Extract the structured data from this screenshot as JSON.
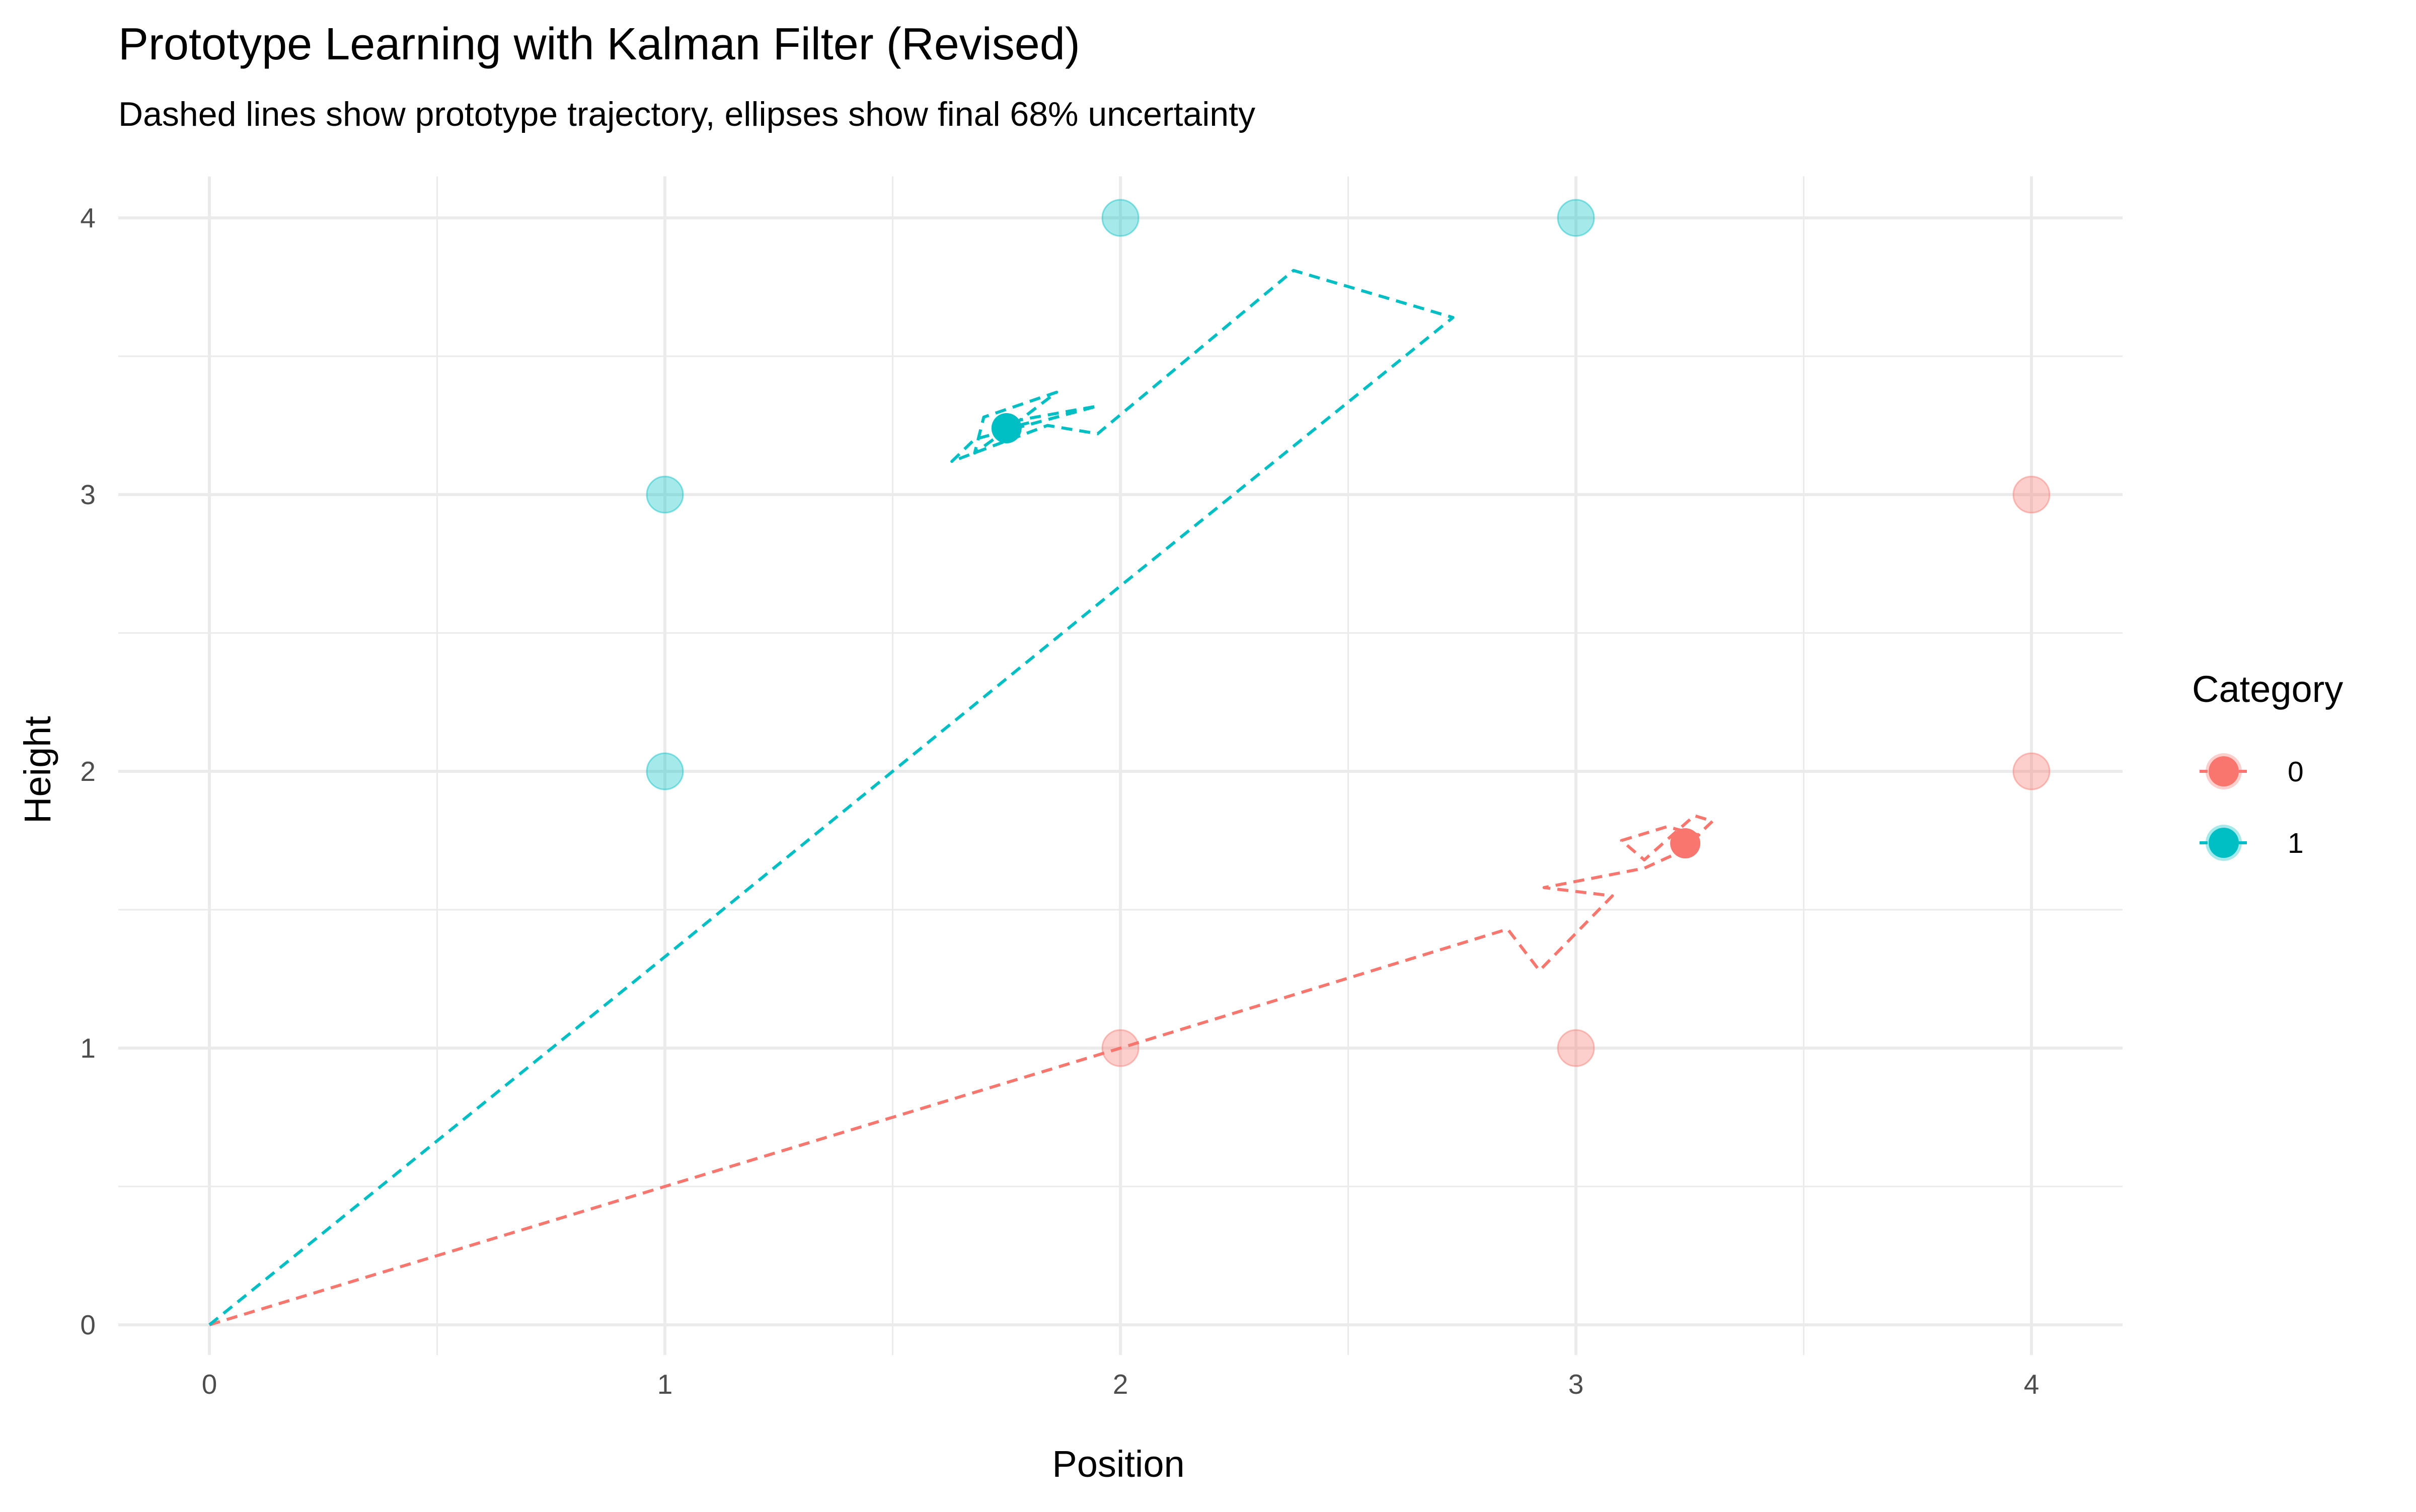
{
  "chart_data": {
    "type": "scatter",
    "title": "Prototype Learning with Kalman Filter (Revised)",
    "subtitle": "Dashed lines show prototype trajectory, ellipses show final 68% uncertainty",
    "xlabel": "Position",
    "ylabel": "Height",
    "xlim": [
      -0.2,
      4.2
    ],
    "ylim": [
      0,
      4.15
    ],
    "x_ticks": [
      0,
      1,
      2,
      3,
      4
    ],
    "y_ticks": [
      0,
      1,
      2,
      3,
      4
    ],
    "x_tick_labels": [
      "0",
      "1",
      "2",
      "3",
      "4"
    ],
    "y_tick_labels": [
      "0",
      "1",
      "2",
      "3",
      "4"
    ],
    "grid": true,
    "legend": {
      "title": "Category",
      "position": "right"
    },
    "colors": {
      "0": "#F8766D",
      "1": "#00BFC4",
      "grid": "#ebebeb",
      "tick_text": "#4d4d4d"
    },
    "series": [
      {
        "name": "0",
        "color": "#F8766D",
        "observations": [
          {
            "x": 2,
            "y": 1
          },
          {
            "x": 3,
            "y": 1
          },
          {
            "x": 4,
            "y": 2
          },
          {
            "x": 4,
            "y": 3
          }
        ],
        "trajectory": [
          {
            "x": 0,
            "y": 0
          },
          {
            "x": 1.0,
            "y": 0.5
          },
          {
            "x": 2.0,
            "y": 1.0
          },
          {
            "x": 2.85,
            "y": 1.43
          },
          {
            "x": 2.92,
            "y": 1.28
          },
          {
            "x": 3.08,
            "y": 1.55
          },
          {
            "x": 2.93,
            "y": 1.58
          },
          {
            "x": 3.15,
            "y": 1.65
          },
          {
            "x": 3.23,
            "y": 1.71
          },
          {
            "x": 3.3,
            "y": 1.82
          },
          {
            "x": 3.26,
            "y": 1.84
          },
          {
            "x": 3.15,
            "y": 1.68
          },
          {
            "x": 3.1,
            "y": 1.75
          },
          {
            "x": 3.2,
            "y": 1.8
          },
          {
            "x": 3.27,
            "y": 1.77
          },
          {
            "x": 3.24,
            "y": 1.74
          }
        ],
        "prototype": {
          "x": 3.24,
          "y": 1.74
        }
      },
      {
        "name": "1",
        "color": "#00BFC4",
        "observations": [
          {
            "x": 1,
            "y": 2
          },
          {
            "x": 1,
            "y": 3
          },
          {
            "x": 2,
            "y": 4
          },
          {
            "x": 3,
            "y": 4
          }
        ],
        "trajectory": [
          {
            "x": 0,
            "y": 0
          },
          {
            "x": 1.0,
            "y": 1.33
          },
          {
            "x": 2.0,
            "y": 2.67
          },
          {
            "x": 2.73,
            "y": 3.64
          },
          {
            "x": 2.38,
            "y": 3.81
          },
          {
            "x": 1.95,
            "y": 3.22
          },
          {
            "x": 1.84,
            "y": 3.25
          },
          {
            "x": 1.63,
            "y": 3.12
          },
          {
            "x": 1.68,
            "y": 3.2
          },
          {
            "x": 1.95,
            "y": 3.32
          },
          {
            "x": 1.78,
            "y": 3.27
          },
          {
            "x": 1.68,
            "y": 3.15
          },
          {
            "x": 1.7,
            "y": 3.28
          },
          {
            "x": 1.86,
            "y": 3.37
          },
          {
            "x": 1.74,
            "y": 3.22
          },
          {
            "x": 1.8,
            "y": 3.26
          },
          {
            "x": 1.75,
            "y": 3.24
          }
        ],
        "prototype": {
          "x": 1.75,
          "y": 3.24
        }
      }
    ]
  }
}
